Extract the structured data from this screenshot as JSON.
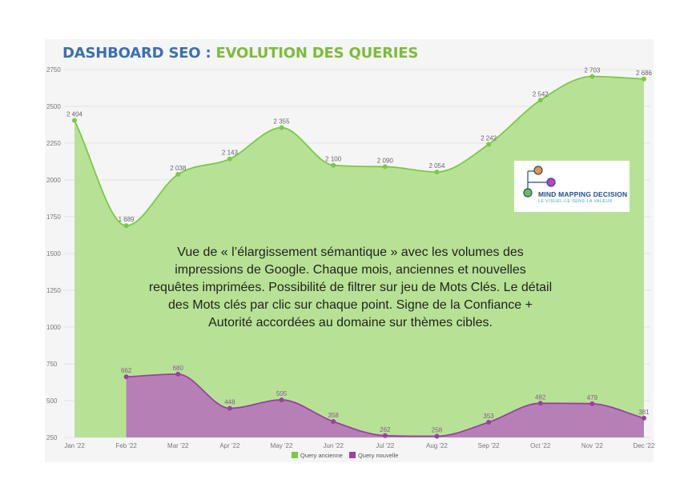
{
  "title": {
    "part1": "DASHBOARD SEO",
    "part2": " : ",
    "part3": "EVOLUTION DES QUERIES"
  },
  "logo": {
    "name": "MIND MAPPING DECISION",
    "tagline": "LE VISUEL-LE SENS-LA VALEUR"
  },
  "annotation": "Vue de « l’élargissement sémantique » avec les volumes des impressions de Google. Chaque mois, anciennes et nouvelles requêtes imprimées. Possibilité de filtrer sur jeu de Mots Clés. Le détail des Mots clés par clic sur chaque point. Signe de la Confiance + Autorité accordées au domaine sur thèmes cibles.",
  "colors": {
    "ancienne_fill": "#b7e295",
    "ancienne_line": "#7ac943",
    "nouvelle_fill": "#b57ab8",
    "nouvelle_line": "#9b3fa4",
    "panel": "#f5f5f5"
  },
  "chart_data": {
    "type": "area",
    "title": "DASHBOARD SEO : EVOLUTION DES QUERIES",
    "categories": [
      "Jan '22",
      "Feb '22",
      "Mar '22",
      "Apr '22",
      "May '22",
      "Jun '22",
      "Jul '22",
      "Aug '22",
      "Sep '22",
      "Oct '22",
      "Nov '22",
      "Dec '22"
    ],
    "ylim": [
      250,
      2750
    ],
    "yticks": [
      250,
      500,
      750,
      1000,
      1250,
      1500,
      1750,
      2000,
      2250,
      2500,
      2750
    ],
    "grid": true,
    "legend_position": "bottom",
    "series": [
      {
        "name": "Query ancienne",
        "values": [
          2404,
          1689,
          2038,
          2143,
          2355,
          2100,
          2090,
          2054,
          2242,
          2542,
          2703,
          2686
        ],
        "labels": [
          "2 404",
          "1 689",
          "2 038",
          "2 143",
          "2 355",
          "2 100",
          "2 090",
          "2 054",
          "2 242",
          "2 542",
          "2 703",
          "2 686"
        ]
      },
      {
        "name": "Query nouvelle",
        "values": [
          null,
          662,
          680,
          448,
          505,
          358,
          262,
          258,
          353,
          482,
          479,
          381
        ],
        "labels": [
          "",
          "662",
          "680",
          "448",
          "505",
          "358",
          "262",
          "258",
          "353",
          "482",
          "479",
          "381"
        ]
      }
    ]
  }
}
